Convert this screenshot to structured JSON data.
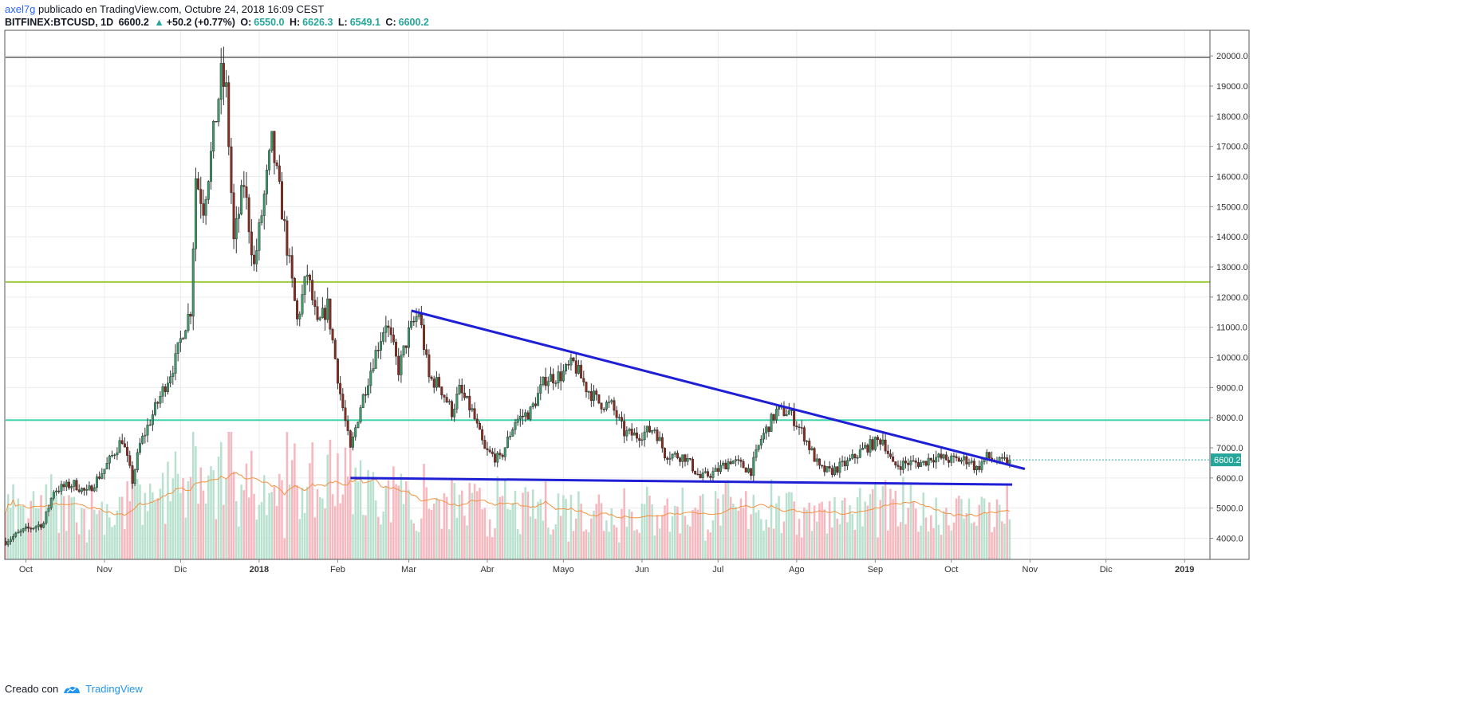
{
  "header": {
    "author": "axel7g",
    "published_text": "publicado en TradingView.com, Octubre 24, 2018 16:09 CEST",
    "symbol": "BITFINEX:BTCUSD, 1D",
    "last": "6600.2",
    "up_glyph": "▲",
    "change": "+50.2 (+0.77%)",
    "o_label": "O:",
    "o_val": "6550.0",
    "h_label": "H:",
    "h_val": "6626.3",
    "l_label": "L:",
    "l_val": "6549.1",
    "c_label": "C:",
    "c_val": "6600.2"
  },
  "footer": {
    "created_with": "Creado con",
    "brand": "TradingView",
    "logo_icon": "tradingview-logo-icon"
  },
  "colors": {
    "bull": "#3d9a6b",
    "bear": "#8b2a1f",
    "vol_bull": "#b9e1cf",
    "vol_bear": "#f6b8bf",
    "ma": "#f5913e",
    "trend": "#1f1fd6",
    "level_green": "#9ccc3c",
    "level_teal": "#3fd5ad",
    "level_gray": "#888888",
    "price_badge": "#26a69a"
  },
  "chart_data": {
    "type": "candlestick",
    "symbol": "BITFINEX:BTCUSD",
    "interval": "1D",
    "ylim": [
      3300,
      20850
    ],
    "y_ticks": [
      "20000.0",
      "19000.0",
      "18000.0",
      "17000.0",
      "16000.0",
      "15000.0",
      "14000.0",
      "13000.0",
      "12000.0",
      "11000.0",
      "10000.0",
      "9000.0",
      "8000.0",
      "7000.0",
      "6000.0",
      "5000.0",
      "4000.0"
    ],
    "x_ticks": [
      "Oct",
      "Nov",
      "Dic",
      "2018",
      "Feb",
      "Mar",
      "Abr",
      "Mayo",
      "Jun",
      "Jul",
      "Ago",
      "Sep",
      "Oct",
      "Nov",
      "Dic",
      "2019"
    ],
    "x_range": [
      "2017-09-23",
      "2019-01-11"
    ],
    "series_dates": [
      "2017-09-23",
      "2018-10-24"
    ],
    "last_price_label": "6600.2",
    "anchors": [
      [
        "2017-09-23",
        3900
      ],
      [
        "2017-09-30",
        4250
      ],
      [
        "2017-10-08",
        4500
      ],
      [
        "2017-10-12",
        5600
      ],
      [
        "2017-10-20",
        5800
      ],
      [
        "2017-10-25",
        5500
      ],
      [
        "2017-11-01",
        6300
      ],
      [
        "2017-11-08",
        7300
      ],
      [
        "2017-11-12",
        5900
      ],
      [
        "2017-11-15",
        7100
      ],
      [
        "2017-11-20",
        8100
      ],
      [
        "2017-11-26",
        9300
      ],
      [
        "2017-11-29",
        9900
      ],
      [
        "2017-12-02",
        10900
      ],
      [
        "2017-12-05",
        11600
      ],
      [
        "2017-12-07",
        16000
      ],
      [
        "2017-12-10",
        15000
      ],
      [
        "2017-12-13",
        16700
      ],
      [
        "2017-12-17",
        19300
      ],
      [
        "2017-12-19",
        18800
      ],
      [
        "2017-12-22",
        13800
      ],
      [
        "2017-12-26",
        15800
      ],
      [
        "2017-12-30",
        13000
      ],
      [
        "2018-01-06",
        17100
      ],
      [
        "2018-01-10",
        14900
      ],
      [
        "2018-01-16",
        11200
      ],
      [
        "2018-01-20",
        12800
      ],
      [
        "2018-01-24",
        11000
      ],
      [
        "2018-01-28",
        11700
      ],
      [
        "2018-02-02",
        8800
      ],
      [
        "2018-02-06",
        6900
      ],
      [
        "2018-02-10",
        8400
      ],
      [
        "2018-02-15",
        9900
      ],
      [
        "2018-02-20",
        11200
      ],
      [
        "2018-02-25",
        9600
      ],
      [
        "2018-03-01",
        10800
      ],
      [
        "2018-03-05",
        11500
      ],
      [
        "2018-03-09",
        9300
      ],
      [
        "2018-03-13",
        9100
      ],
      [
        "2018-03-18",
        8200
      ],
      [
        "2018-03-21",
        8900
      ],
      [
        "2018-03-26",
        8200
      ],
      [
        "2018-03-31",
        6900
      ],
      [
        "2018-04-06",
        6600
      ],
      [
        "2018-04-12",
        7900
      ],
      [
        "2018-04-18",
        8200
      ],
      [
        "2018-04-24",
        9300
      ],
      [
        "2018-04-30",
        9400
      ],
      [
        "2018-05-05",
        9800
      ],
      [
        "2018-05-10",
        9000
      ],
      [
        "2018-05-15",
        8500
      ],
      [
        "2018-05-20",
        8400
      ],
      [
        "2018-05-25",
        7500
      ],
      [
        "2018-05-30",
        7400
      ],
      [
        "2018-06-06",
        7650
      ],
      [
        "2018-06-10",
        6800
      ],
      [
        "2018-06-18",
        6700
      ],
      [
        "2018-06-24",
        6000
      ],
      [
        "2018-06-30",
        6200
      ],
      [
        "2018-07-06",
        6600
      ],
      [
        "2018-07-14",
        6250
      ],
      [
        "2018-07-18",
        7300
      ],
      [
        "2018-07-24",
        8200
      ],
      [
        "2018-07-29",
        8200
      ],
      [
        "2018-08-04",
        7400
      ],
      [
        "2018-08-10",
        6300
      ],
      [
        "2018-08-14",
        6200
      ],
      [
        "2018-08-21",
        6500
      ],
      [
        "2018-08-28",
        7000
      ],
      [
        "2018-09-04",
        7300
      ],
      [
        "2018-09-08",
        6400
      ],
      [
        "2018-09-14",
        6500
      ],
      [
        "2018-09-20",
        6500
      ],
      [
        "2018-09-23",
        6700
      ],
      [
        "2018-10-01",
        6600
      ],
      [
        "2018-10-08",
        6600
      ],
      [
        "2018-10-11",
        6300
      ],
      [
        "2018-10-15",
        6700
      ],
      [
        "2018-10-20",
        6500
      ],
      [
        "2018-10-24",
        6600.2
      ]
    ],
    "horizontal_levels": [
      {
        "price": 19950,
        "color": "#888888"
      },
      {
        "price": 12500,
        "color": "#9ccc3c"
      },
      {
        "price": 7920,
        "color": "#3fd5ad"
      }
    ],
    "trendlines": [
      {
        "from": [
          "2018-03-02",
          11550
        ],
        "to": [
          "2018-10-30",
          6300
        ]
      },
      {
        "from": [
          "2018-02-06",
          6000
        ],
        "to": [
          "2018-10-25",
          5780
        ]
      }
    ]
  }
}
